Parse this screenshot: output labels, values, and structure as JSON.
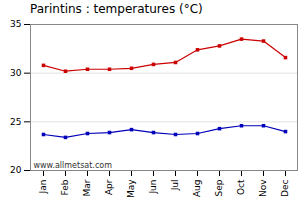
{
  "chart_data": {
    "type": "line",
    "title": "Parintins : temperatures (°C)",
    "categories": [
      "Jan",
      "Feb",
      "Mar",
      "Apr",
      "May",
      "Jun",
      "Jul",
      "Aug",
      "Sep",
      "Oct",
      "Nov",
      "Dec"
    ],
    "series": [
      {
        "color": "#cc0000",
        "marker": "square",
        "values": [
          30.8,
          30.2,
          30.4,
          30.4,
          30.5,
          30.9,
          31.1,
          32.4,
          32.8,
          33.5,
          33.3,
          31.6
        ]
      },
      {
        "color": "#0000bb",
        "marker": "square",
        "values": [
          23.7,
          23.4,
          23.8,
          23.9,
          24.2,
          23.9,
          23.7,
          23.8,
          24.3,
          24.6,
          24.6,
          24.0
        ]
      }
    ],
    "ylim": [
      20,
      35
    ],
    "yticks": [
      20,
      25,
      30,
      35
    ],
    "grid": true,
    "annotations": [
      "www.allmetsat.com"
    ]
  }
}
